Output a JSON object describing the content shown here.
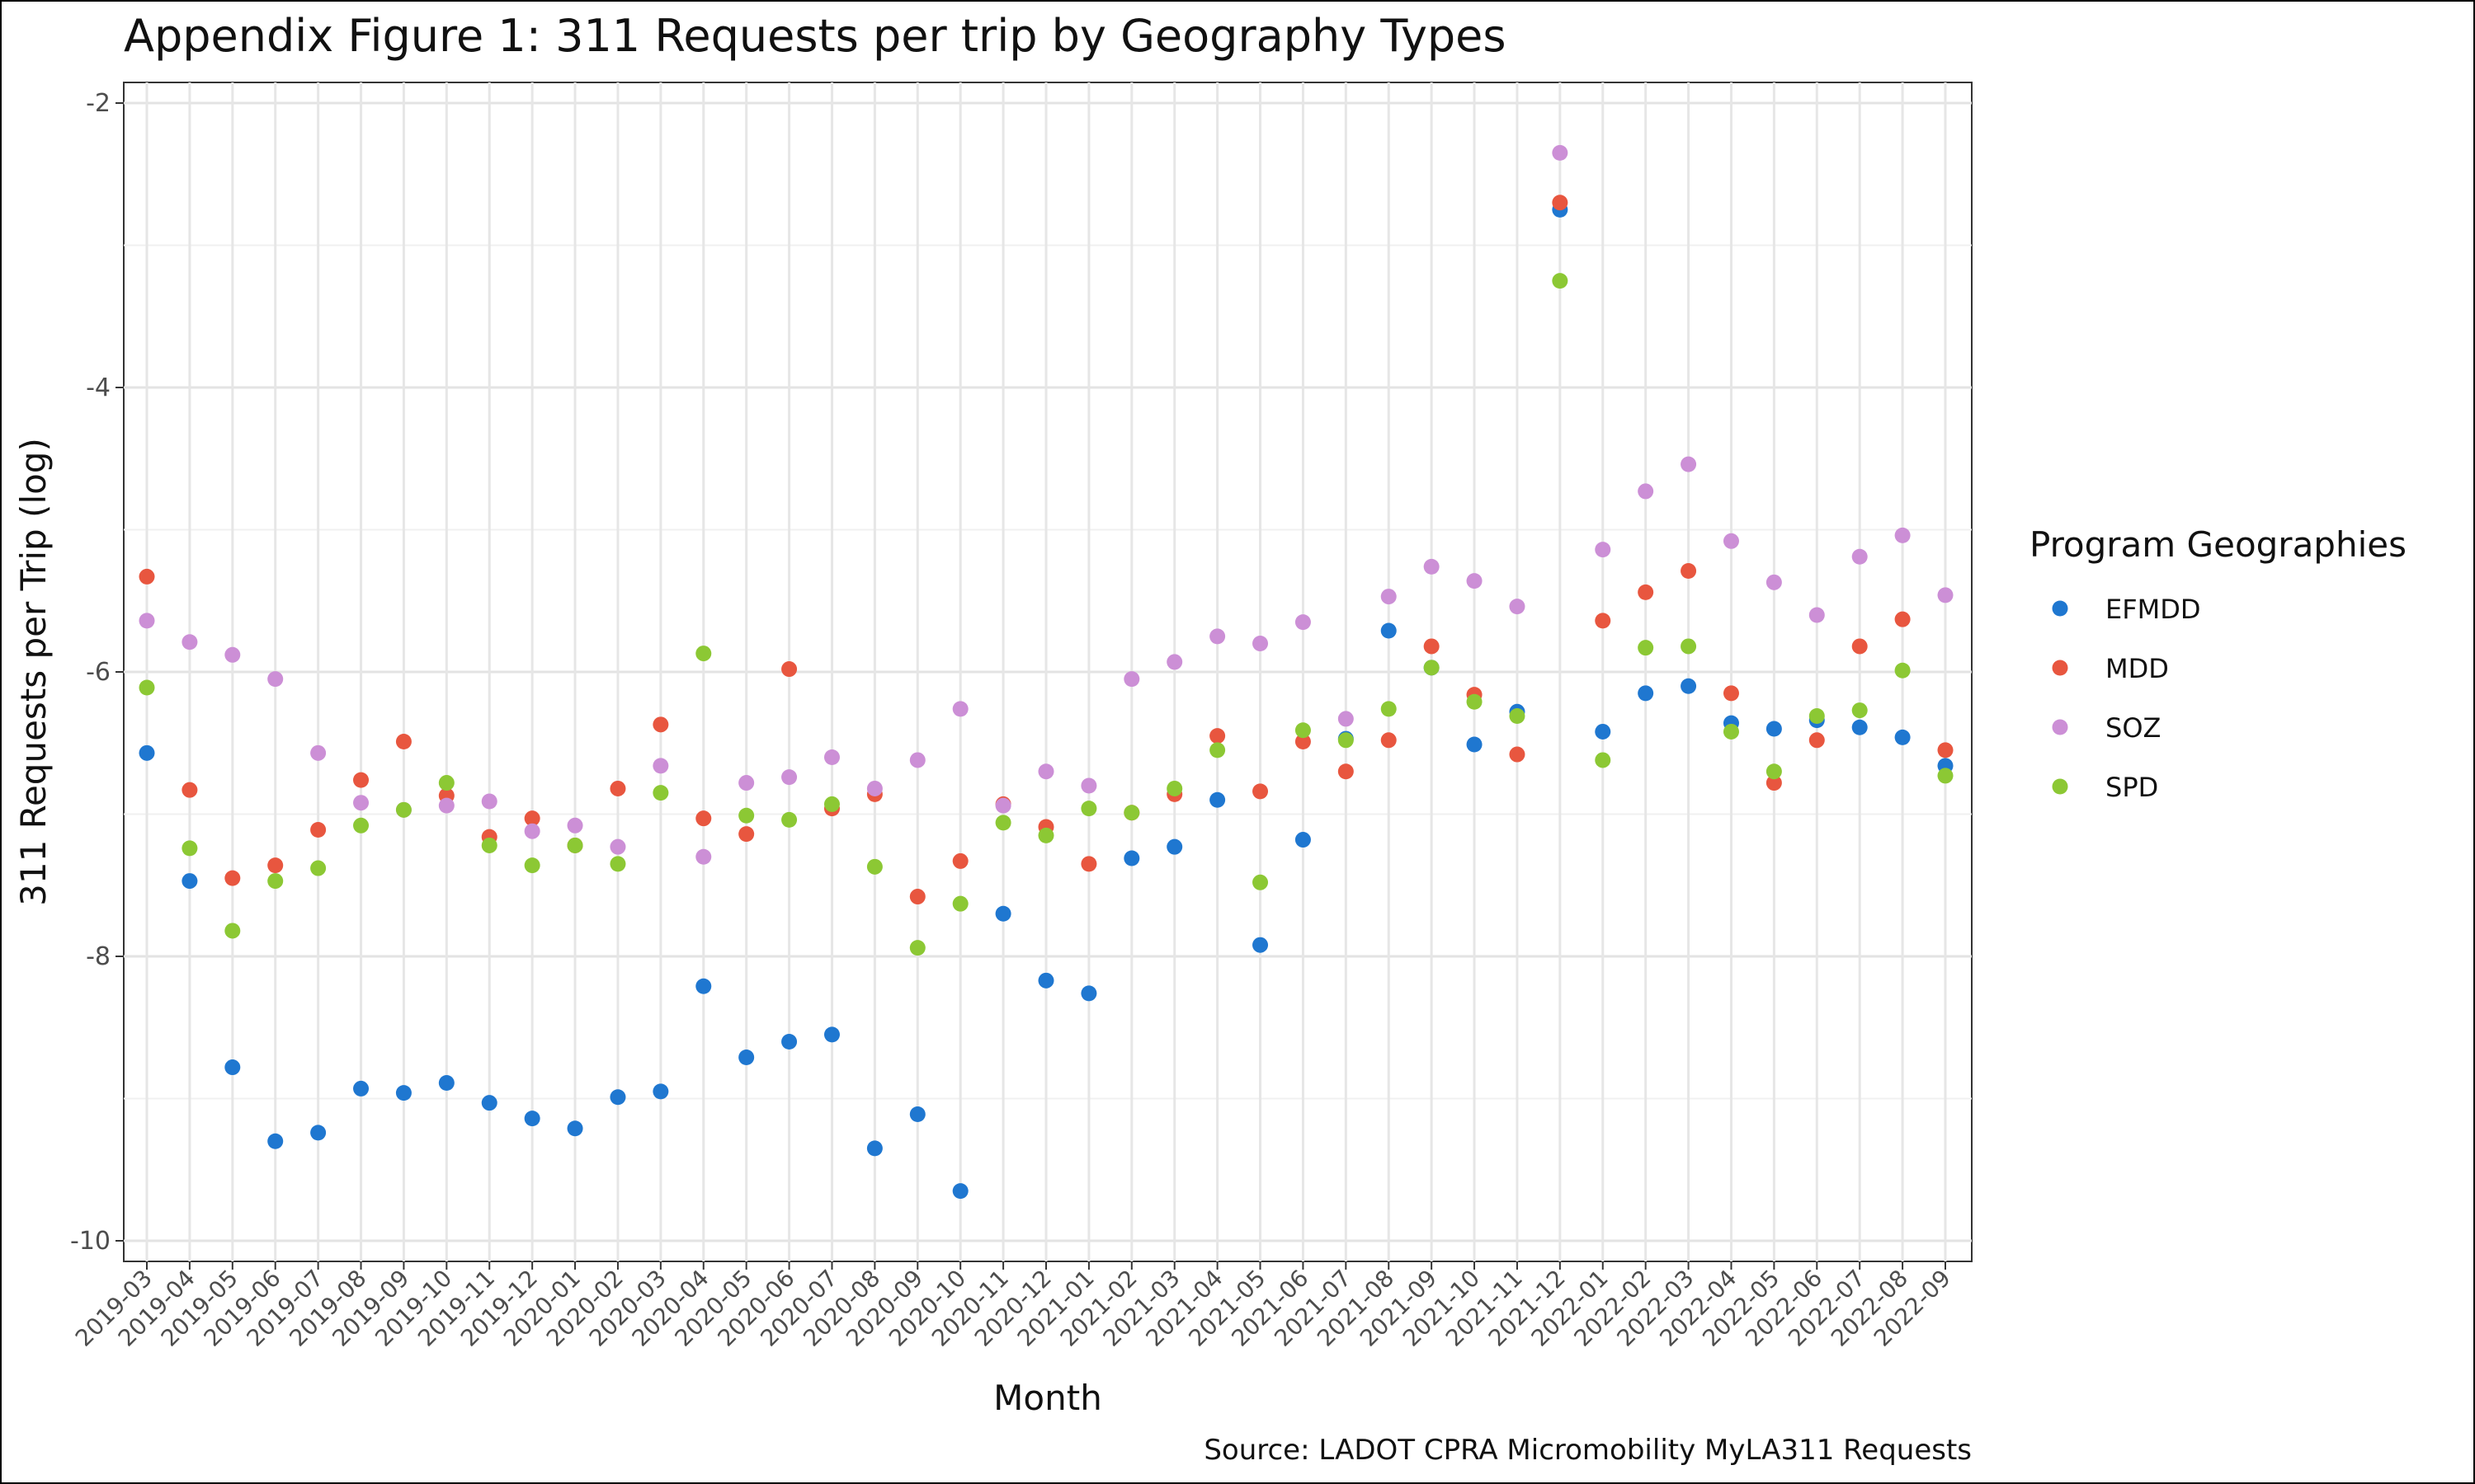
{
  "chart_data": {
    "type": "scatter",
    "title": "Appendix Figure 1: 311 Requests per trip by Geography Types",
    "xlabel": "Month",
    "ylabel": "311 Requests per Trip (log)",
    "caption": "Source: LADOT CPRA Micromobility MyLA311 Requests",
    "legend_title": "Program Geographies",
    "legend_position": "right",
    "grid": true,
    "ylim": [
      -10,
      -2
    ],
    "yticks": [
      -10,
      -8,
      -6,
      -4,
      -2
    ],
    "ytick_labels": [
      "-10",
      "-8",
      "-6",
      "-4",
      "-2"
    ],
    "categories": [
      "2019-03",
      "2019-04",
      "2019-05",
      "2019-06",
      "2019-07",
      "2019-08",
      "2019-09",
      "2019-10",
      "2019-11",
      "2019-12",
      "2020-01",
      "2020-02",
      "2020-03",
      "2020-04",
      "2020-05",
      "2020-06",
      "2020-07",
      "2020-08",
      "2020-09",
      "2020-10",
      "2020-11",
      "2020-12",
      "2021-01",
      "2021-02",
      "2021-03",
      "2021-04",
      "2021-05",
      "2021-06",
      "2021-07",
      "2021-08",
      "2021-09",
      "2021-10",
      "2021-11",
      "2021-12",
      "2022-01",
      "2022-02",
      "2022-03",
      "2022-04",
      "2022-05",
      "2022-06",
      "2022-07",
      "2022-08",
      "2022-09"
    ],
    "series": [
      {
        "name": "EFMDD",
        "color": "#1f77d0",
        "values": [
          -6.57,
          -7.47,
          -8.78,
          -9.3,
          -9.24,
          -8.93,
          -8.96,
          -8.89,
          -9.03,
          -9.14,
          -9.21,
          -8.99,
          -8.95,
          -8.21,
          -8.71,
          -8.6,
          -8.55,
          -9.35,
          -9.11,
          -9.65,
          -7.7,
          -8.17,
          -8.26,
          -7.31,
          -7.23,
          -6.9,
          -7.92,
          -7.18,
          -6.47,
          -5.71,
          -5.97,
          -6.51,
          -6.28,
          -2.75,
          -6.42,
          -6.15,
          -6.1,
          -6.36,
          -6.4,
          -6.34,
          -6.39,
          -6.46,
          -6.66
        ]
      },
      {
        "name": "MDD",
        "color": "#e8563f",
        "values": [
          -5.33,
          -6.83,
          -7.45,
          -7.36,
          -7.11,
          -6.76,
          -6.49,
          -6.87,
          -7.16,
          -7.03,
          -7.22,
          -6.82,
          -6.37,
          -7.03,
          -7.14,
          -5.98,
          -6.96,
          -6.86,
          -7.58,
          -7.33,
          -6.93,
          -7.09,
          -7.35,
          -6.99,
          -6.86,
          -6.45,
          -6.84,
          -6.49,
          -6.7,
          -6.48,
          -5.82,
          -6.16,
          -6.58,
          -2.7,
          -5.64,
          -5.44,
          -5.29,
          -6.15,
          -6.78,
          -6.48,
          -5.82,
          -5.63,
          -6.55
        ]
      },
      {
        "name": "SOZ",
        "color": "#cc8fd6",
        "values": [
          -5.64,
          -5.79,
          -5.88,
          -6.05,
          -6.57,
          -6.92,
          -6.97,
          -6.94,
          -6.91,
          -7.12,
          -7.08,
          -7.23,
          -6.66,
          -7.3,
          -6.78,
          -6.74,
          -6.6,
          -6.82,
          -6.62,
          -6.26,
          -6.94,
          -6.7,
          -6.8,
          -6.05,
          -5.93,
          -5.75,
          -5.8,
          -5.65,
          -6.33,
          -5.47,
          -5.26,
          -5.36,
          -5.54,
          -2.35,
          -5.14,
          -4.73,
          -4.54,
          -5.08,
          -5.37,
          -5.6,
          -5.19,
          -5.04,
          -5.46
        ]
      },
      {
        "name": "SPD",
        "color": "#8cc834",
        "values": [
          -6.11,
          -7.24,
          -7.82,
          -7.47,
          -7.38,
          -7.08,
          -6.97,
          -6.78,
          -7.22,
          -7.36,
          -7.22,
          -7.35,
          -6.85,
          -5.87,
          -7.01,
          -7.04,
          -6.93,
          -7.37,
          -7.94,
          -7.63,
          -7.06,
          -7.15,
          -6.96,
          -6.99,
          -6.82,
          -6.55,
          -7.48,
          -6.41,
          -6.48,
          -6.26,
          -5.97,
          -6.21,
          -6.31,
          -3.25,
          -6.62,
          -5.83,
          -5.82,
          -6.42,
          -6.7,
          -6.31,
          -6.27,
          -5.99,
          -6.73
        ]
      }
    ]
  }
}
